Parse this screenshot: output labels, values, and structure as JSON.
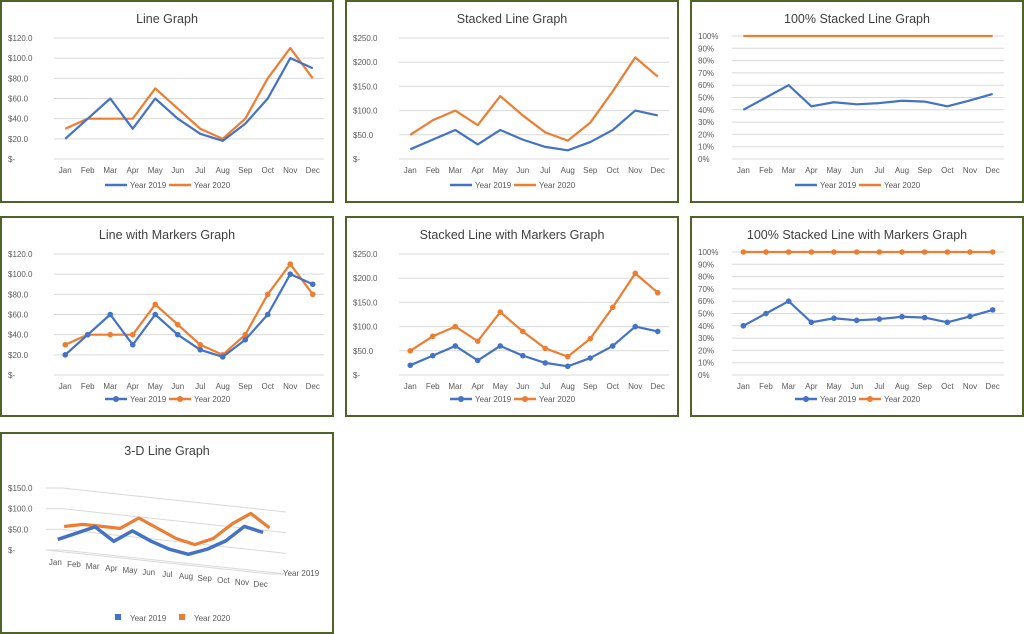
{
  "colors": {
    "s2019": "#4472c4",
    "s2020": "#ed7d31",
    "grid": "#d9d9d9",
    "axis_text": "#595959",
    "title": "#404040",
    "border": "#4f6228"
  },
  "chart_data": [
    {
      "type": "line",
      "variant": "line",
      "title": "Line Graph",
      "categories": [
        "Jan",
        "Feb",
        "Mar",
        "Apr",
        "May",
        "Jun",
        "Jul",
        "Aug",
        "Sep",
        "Oct",
        "Nov",
        "Dec"
      ],
      "series": [
        {
          "name": "Year 2019",
          "values": [
            20,
            40,
            60,
            30,
            60,
            40,
            25,
            18,
            35,
            60,
            100,
            90
          ]
        },
        {
          "name": "Year 2020",
          "values": [
            30,
            40,
            40,
            40,
            70,
            50,
            30,
            20,
            40,
            80,
            110,
            80
          ]
        }
      ],
      "ylim": [
        0,
        120
      ],
      "yticks": [
        "$-",
        "$20.0",
        "$40.0",
        "$60.0",
        "$80.0",
        "$100.0",
        "$120.0"
      ],
      "legend": "bottom",
      "markers": false
    },
    {
      "type": "line",
      "variant": "stacked",
      "title": "Stacked Line Graph",
      "categories": [
        "Jan",
        "Feb",
        "Mar",
        "Apr",
        "May",
        "Jun",
        "Jul",
        "Aug",
        "Sep",
        "Oct",
        "Nov",
        "Dec"
      ],
      "series": [
        {
          "name": "Year 2019",
          "values": [
            20,
            40,
            60,
            30,
            60,
            40,
            25,
            18,
            35,
            60,
            100,
            90
          ]
        },
        {
          "name": "Year 2020",
          "values": [
            30,
            40,
            40,
            40,
            70,
            50,
            30,
            20,
            40,
            80,
            110,
            80
          ]
        }
      ],
      "ylim": [
        0,
        250
      ],
      "yticks": [
        "$-",
        "$50.0",
        "$100.0",
        "$150.0",
        "$200.0",
        "$250.0"
      ],
      "legend": "bottom",
      "markers": false
    },
    {
      "type": "line",
      "variant": "percent",
      "title": "100% Stacked Line Graph",
      "categories": [
        "Jan",
        "Feb",
        "Mar",
        "Apr",
        "May",
        "Jun",
        "Jul",
        "Aug",
        "Sep",
        "Oct",
        "Nov",
        "Dec"
      ],
      "series": [
        {
          "name": "Year 2019",
          "values": [
            20,
            40,
            60,
            30,
            60,
            40,
            25,
            18,
            35,
            60,
            100,
            90
          ]
        },
        {
          "name": "Year 2020",
          "values": [
            30,
            40,
            40,
            40,
            70,
            50,
            30,
            20,
            40,
            80,
            110,
            80
          ]
        }
      ],
      "ylim": [
        0,
        100
      ],
      "yticks": [
        "0%",
        "10%",
        "20%",
        "30%",
        "40%",
        "50%",
        "60%",
        "70%",
        "80%",
        "90%",
        "100%"
      ],
      "legend": "bottom",
      "markers": false
    },
    {
      "type": "line",
      "variant": "line",
      "title": "Line with Markers Graph",
      "categories": [
        "Jan",
        "Feb",
        "Mar",
        "Apr",
        "May",
        "Jun",
        "Jul",
        "Aug",
        "Sep",
        "Oct",
        "Nov",
        "Dec"
      ],
      "series": [
        {
          "name": "Year 2019",
          "values": [
            20,
            40,
            60,
            30,
            60,
            40,
            25,
            18,
            35,
            60,
            100,
            90
          ]
        },
        {
          "name": "Year 2020",
          "values": [
            30,
            40,
            40,
            40,
            70,
            50,
            30,
            20,
            40,
            80,
            110,
            80
          ]
        }
      ],
      "ylim": [
        0,
        120
      ],
      "yticks": [
        "$-",
        "$20.0",
        "$40.0",
        "$60.0",
        "$80.0",
        "$100.0",
        "$120.0"
      ],
      "legend": "bottom",
      "markers": true
    },
    {
      "type": "line",
      "variant": "stacked",
      "title": "Stacked Line with Markers Graph",
      "categories": [
        "Jan",
        "Feb",
        "Mar",
        "Apr",
        "May",
        "Jun",
        "Jul",
        "Aug",
        "Sep",
        "Oct",
        "Nov",
        "Dec"
      ],
      "series": [
        {
          "name": "Year 2019",
          "values": [
            20,
            40,
            60,
            30,
            60,
            40,
            25,
            18,
            35,
            60,
            100,
            90
          ]
        },
        {
          "name": "Year 2020",
          "values": [
            30,
            40,
            40,
            40,
            70,
            50,
            30,
            20,
            40,
            80,
            110,
            80
          ]
        }
      ],
      "ylim": [
        0,
        250
      ],
      "yticks": [
        "$-",
        "$50.0",
        "$100.0",
        "$150.0",
        "$200.0",
        "$250.0"
      ],
      "legend": "bottom",
      "markers": true
    },
    {
      "type": "line",
      "variant": "percent",
      "title": "100% Stacked Line with Markers Graph",
      "categories": [
        "Jan",
        "Feb",
        "Mar",
        "Apr",
        "May",
        "Jun",
        "Jul",
        "Aug",
        "Sep",
        "Oct",
        "Nov",
        "Dec"
      ],
      "series": [
        {
          "name": "Year 2019",
          "values": [
            20,
            40,
            60,
            30,
            60,
            40,
            25,
            18,
            35,
            60,
            100,
            90
          ]
        },
        {
          "name": "Year 2020",
          "values": [
            30,
            40,
            40,
            40,
            70,
            50,
            30,
            20,
            40,
            80,
            110,
            80
          ]
        }
      ],
      "ylim": [
        0,
        100
      ],
      "yticks": [
        "0%",
        "10%",
        "20%",
        "30%",
        "40%",
        "50%",
        "60%",
        "70%",
        "80%",
        "90%",
        "100%"
      ],
      "legend": "bottom",
      "markers": true
    },
    {
      "type": "line",
      "variant": "3d",
      "title": "3-D Line Graph",
      "categories": [
        "Jan",
        "Feb",
        "Mar",
        "Apr",
        "May",
        "Jun",
        "Jul",
        "Aug",
        "Sep",
        "Oct",
        "Nov",
        "Dec"
      ],
      "series": [
        {
          "name": "Year 2019",
          "values": [
            20,
            40,
            60,
            30,
            60,
            40,
            25,
            18,
            35,
            60,
            100,
            90
          ]
        },
        {
          "name": "Year 2020",
          "values": [
            30,
            40,
            40,
            40,
            70,
            50,
            30,
            20,
            40,
            80,
            110,
            80
          ]
        }
      ],
      "ylim": [
        0,
        150
      ],
      "yticks": [
        "$-",
        "$50.0",
        "$100.0",
        "$150.0"
      ],
      "depth_label": "Year 2019",
      "legend": "bottom",
      "markers": false
    }
  ]
}
